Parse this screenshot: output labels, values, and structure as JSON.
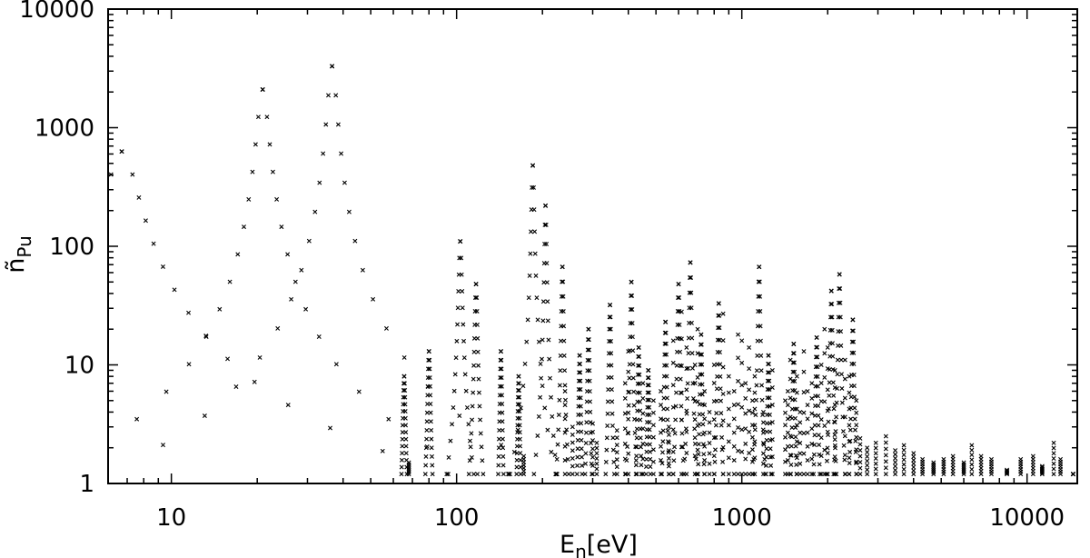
{
  "chart_data": {
    "type": "scatter",
    "marker": "x",
    "marker_color": "#000000",
    "title": "",
    "xlabel": {
      "base": "E",
      "sub": "n",
      "unit": "[eV]"
    },
    "ylabel": {
      "base": "ñ",
      "sub": "Pu"
    },
    "x_scale": "log",
    "y_scale": "log",
    "xlim": [
      6,
      15000
    ],
    "ylim": [
      1,
      10000
    ],
    "grid": false,
    "x_ticks": [
      {
        "value": 10,
        "label": "10"
      },
      {
        "value": 100,
        "label": "100"
      },
      {
        "value": 1000,
        "label": "1000"
      },
      {
        "value": 10000,
        "label": "10000"
      }
    ],
    "y_ticks": [
      {
        "value": 1,
        "label": "1"
      },
      {
        "value": 10,
        "label": "10"
      },
      {
        "value": 100,
        "label": "100"
      },
      {
        "value": 1000,
        "label": "1000"
      },
      {
        "value": 10000,
        "label": "10000"
      }
    ],
    "resonances": [
      {
        "e0": 6.7,
        "peak": 630,
        "width": 0.05
      },
      {
        "e0": 20.9,
        "peak": 2100,
        "width": 0.018
      },
      {
        "e0": 36.6,
        "peak": 3300,
        "width": 0.015
      },
      {
        "e0": 65.5,
        "peak": 8,
        "width": 0.004
      },
      {
        "e0": 80.0,
        "peak": 13,
        "width": 0.004
      },
      {
        "e0": 103,
        "peak": 110,
        "width": 0.005
      },
      {
        "e0": 117,
        "peak": 48,
        "width": 0.004
      },
      {
        "e0": 143,
        "peak": 13,
        "width": 0.003
      },
      {
        "e0": 165,
        "peak": 8,
        "width": 0.003
      },
      {
        "e0": 185,
        "peak": 480,
        "width": 0.004
      },
      {
        "e0": 205,
        "peak": 220,
        "width": 0.003
      },
      {
        "e0": 235,
        "peak": 67,
        "width": 0.003
      },
      {
        "e0": 270,
        "peak": 12,
        "width": 0.003
      },
      {
        "e0": 290,
        "peak": 20,
        "width": 0.003
      },
      {
        "e0": 345,
        "peak": 32,
        "width": 0.003
      },
      {
        "e0": 410,
        "peak": 50,
        "width": 0.003
      },
      {
        "e0": 435,
        "peak": 14,
        "width": 0.003
      },
      {
        "e0": 470,
        "peak": 9,
        "width": 0.003
      },
      {
        "e0": 540,
        "peak": 23,
        "width": 0.003
      },
      {
        "e0": 600,
        "peak": 48,
        "width": 0.003
      },
      {
        "e0": 660,
        "peak": 73,
        "width": 0.003
      },
      {
        "e0": 720,
        "peak": 18,
        "width": 0.003
      },
      {
        "e0": 830,
        "peak": 33,
        "width": 0.003
      },
      {
        "e0": 1150,
        "peak": 67,
        "width": 0.003
      },
      {
        "e0": 1240,
        "peak": 12,
        "width": 0.003
      },
      {
        "e0": 1520,
        "peak": 15,
        "width": 0.003
      },
      {
        "e0": 1830,
        "peak": 17,
        "width": 0.003
      },
      {
        "e0": 2060,
        "peak": 42,
        "width": 0.003
      },
      {
        "e0": 2200,
        "peak": 58,
        "width": 0.003
      },
      {
        "e0": 2450,
        "peak": 24,
        "width": 0.003
      }
    ],
    "spikes": [
      {
        "x": 68,
        "y": 1.5
      },
      {
        "x": 152,
        "y": 1.2
      },
      {
        "x": 172,
        "y": 1.7
      },
      {
        "x": 240,
        "y": 6
      },
      {
        "x": 255,
        "y": 3
      },
      {
        "x": 300,
        "y": 3.2
      },
      {
        "x": 310,
        "y": 2.2
      },
      {
        "x": 365,
        "y": 2.8
      },
      {
        "x": 390,
        "y": 7
      },
      {
        "x": 400,
        "y": 13
      },
      {
        "x": 450,
        "y": 7
      },
      {
        "x": 490,
        "y": 5
      },
      {
        "x": 520,
        "y": 6
      },
      {
        "x": 555,
        "y": 3
      },
      {
        "x": 575,
        "y": 16
      },
      {
        "x": 615,
        "y": 28
      },
      {
        "x": 640,
        "y": 14
      },
      {
        "x": 685,
        "y": 10
      },
      {
        "x": 700,
        "y": 20
      },
      {
        "x": 740,
        "y": 6
      },
      {
        "x": 770,
        "y": 4
      },
      {
        "x": 800,
        "y": 10
      },
      {
        "x": 860,
        "y": 27
      },
      {
        "x": 900,
        "y": 8
      },
      {
        "x": 940,
        "y": 6
      },
      {
        "x": 970,
        "y": 18
      },
      {
        "x": 1000,
        "y": 16
      },
      {
        "x": 1030,
        "y": 7
      },
      {
        "x": 1060,
        "y": 14
      },
      {
        "x": 1090,
        "y": 5
      },
      {
        "x": 1110,
        "y": 8
      },
      {
        "x": 1190,
        "y": 4
      },
      {
        "x": 1280,
        "y": 9
      },
      {
        "x": 1420,
        "y": 5
      },
      {
        "x": 1450,
        "y": 6
      },
      {
        "x": 1480,
        "y": 11
      },
      {
        "x": 1560,
        "y": 8
      },
      {
        "x": 1600,
        "y": 4
      },
      {
        "x": 1650,
        "y": 13
      },
      {
        "x": 1700,
        "y": 6
      },
      {
        "x": 1760,
        "y": 7
      },
      {
        "x": 1900,
        "y": 10
      },
      {
        "x": 1950,
        "y": 20
      },
      {
        "x": 2000,
        "y": 14
      },
      {
        "x": 2120,
        "y": 9
      },
      {
        "x": 2300,
        "y": 11
      },
      {
        "x": 2380,
        "y": 8
      },
      {
        "x": 2520,
        "y": 5
      },
      {
        "x": 2600,
        "y": 2.4
      },
      {
        "x": 2750,
        "y": 2.0
      },
      {
        "x": 2950,
        "y": 2.2
      },
      {
        "x": 3200,
        "y": 2.5
      },
      {
        "x": 3450,
        "y": 1.9
      },
      {
        "x": 3700,
        "y": 2.1
      },
      {
        "x": 4000,
        "y": 1.8
      },
      {
        "x": 4300,
        "y": 1.6
      },
      {
        "x": 4700,
        "y": 1.5
      },
      {
        "x": 5100,
        "y": 1.6
      },
      {
        "x": 5500,
        "y": 1.7
      },
      {
        "x": 6000,
        "y": 1.5
      },
      {
        "x": 6400,
        "y": 2.1
      },
      {
        "x": 6900,
        "y": 1.7
      },
      {
        "x": 7500,
        "y": 1.6
      },
      {
        "x": 8500,
        "y": 1.3
      },
      {
        "x": 9500,
        "y": 1.6
      },
      {
        "x": 10500,
        "y": 1.7
      },
      {
        "x": 11300,
        "y": 1.4
      },
      {
        "x": 12400,
        "y": 2.2
      },
      {
        "x": 13100,
        "y": 1.6
      },
      {
        "x": 14500,
        "y": 1.2
      }
    ]
  }
}
